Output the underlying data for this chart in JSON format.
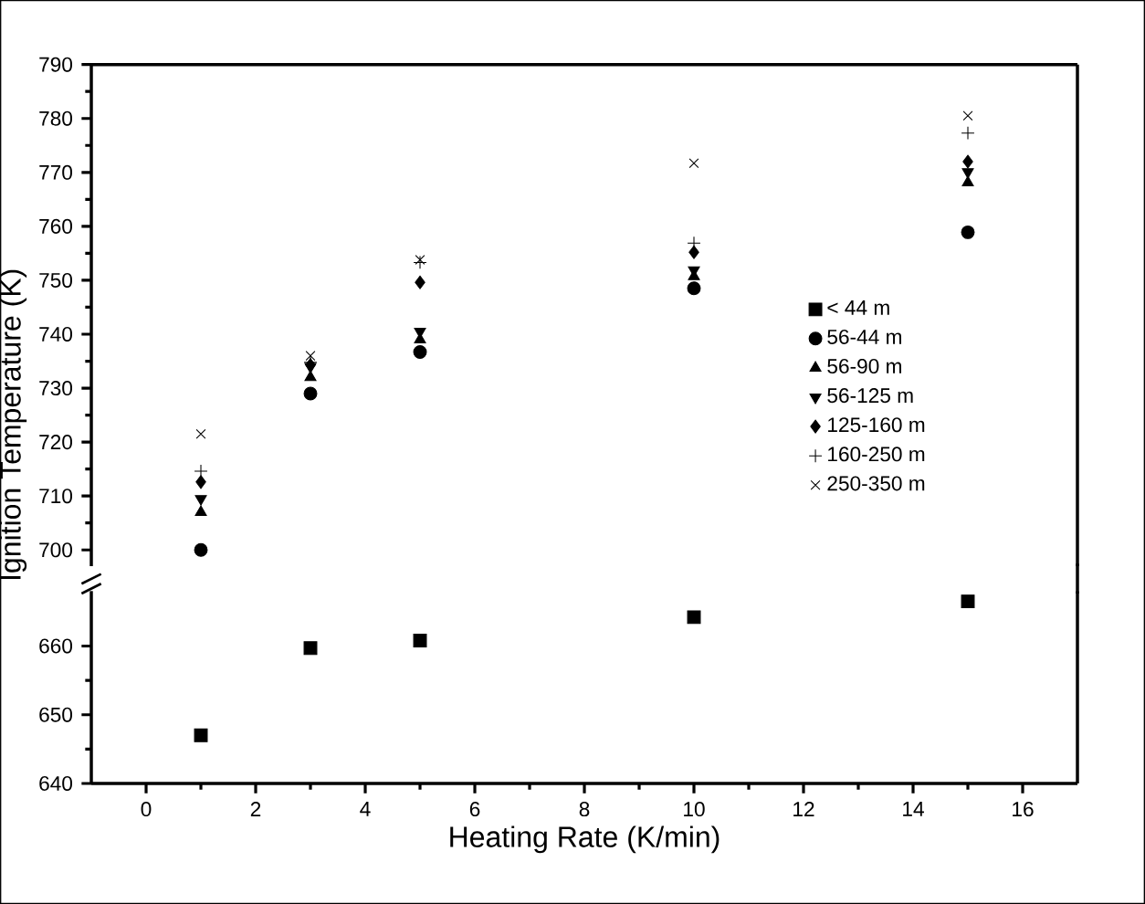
{
  "chart_data": [
    {
      "type": "scatter",
      "ylabel": "Ignition Temperature (K)",
      "xlim": [
        -1,
        17
      ],
      "ylim": [
        697,
        790
      ],
      "yticks": [
        700,
        710,
        720,
        730,
        740,
        750,
        760,
        770,
        780,
        790
      ],
      "tick_labels": "y",
      "legend": "right",
      "x": [
        1,
        3,
        5,
        10,
        15
      ],
      "series": [
        {
          "name": "< 44 m",
          "color": "#000000",
          "marker": "square",
          "values": [
            null,
            null,
            null,
            null,
            null
          ]
        },
        {
          "name": "56-44 m",
          "color": "#000000",
          "marker": "circle",
          "values": [
            700,
            729,
            736.7,
            748.5,
            758.9
          ]
        },
        {
          "name": "56-90 m",
          "color": "#000000",
          "marker": "triangle",
          "values": [
            707,
            732,
            739,
            750.7,
            768.1
          ]
        },
        {
          "name": "56-125 m",
          "color": "#000000",
          "marker": "triangle-down",
          "values": [
            709.5,
            734,
            740.5,
            751.9,
            770.1
          ]
        },
        {
          "name": "125-160 m",
          "color": "#000000",
          "marker": "diamond",
          "values": [
            712.6,
            734.3,
            749.6,
            755.2,
            772
          ]
        },
        {
          "name": "160-250 m",
          "color": "#000000",
          "marker": "plus",
          "values": [
            714.6,
            734.8,
            753.3,
            756.9,
            777.3
          ]
        },
        {
          "name": "250-350 m",
          "color": "#000000",
          "marker": "cross",
          "values": [
            721.5,
            736,
            753.8,
            771.7,
            780.5
          ]
        }
      ]
    },
    {
      "type": "scatter",
      "xlabel": "Heating Rate (K/min)",
      "xlim": [
        -1,
        17
      ],
      "xticks": [
        0,
        2,
        4,
        6,
        8,
        10,
        12,
        14,
        16
      ],
      "ylim": [
        640,
        668
      ],
      "yticks": [
        640,
        650,
        660
      ],
      "x": [
        1,
        3,
        5,
        10,
        15
      ],
      "series": [
        {
          "color": "#000000",
          "marker": "square",
          "values": [
            647,
            659.7,
            660.8,
            664.2,
            666.5
          ]
        }
      ]
    }
  ]
}
